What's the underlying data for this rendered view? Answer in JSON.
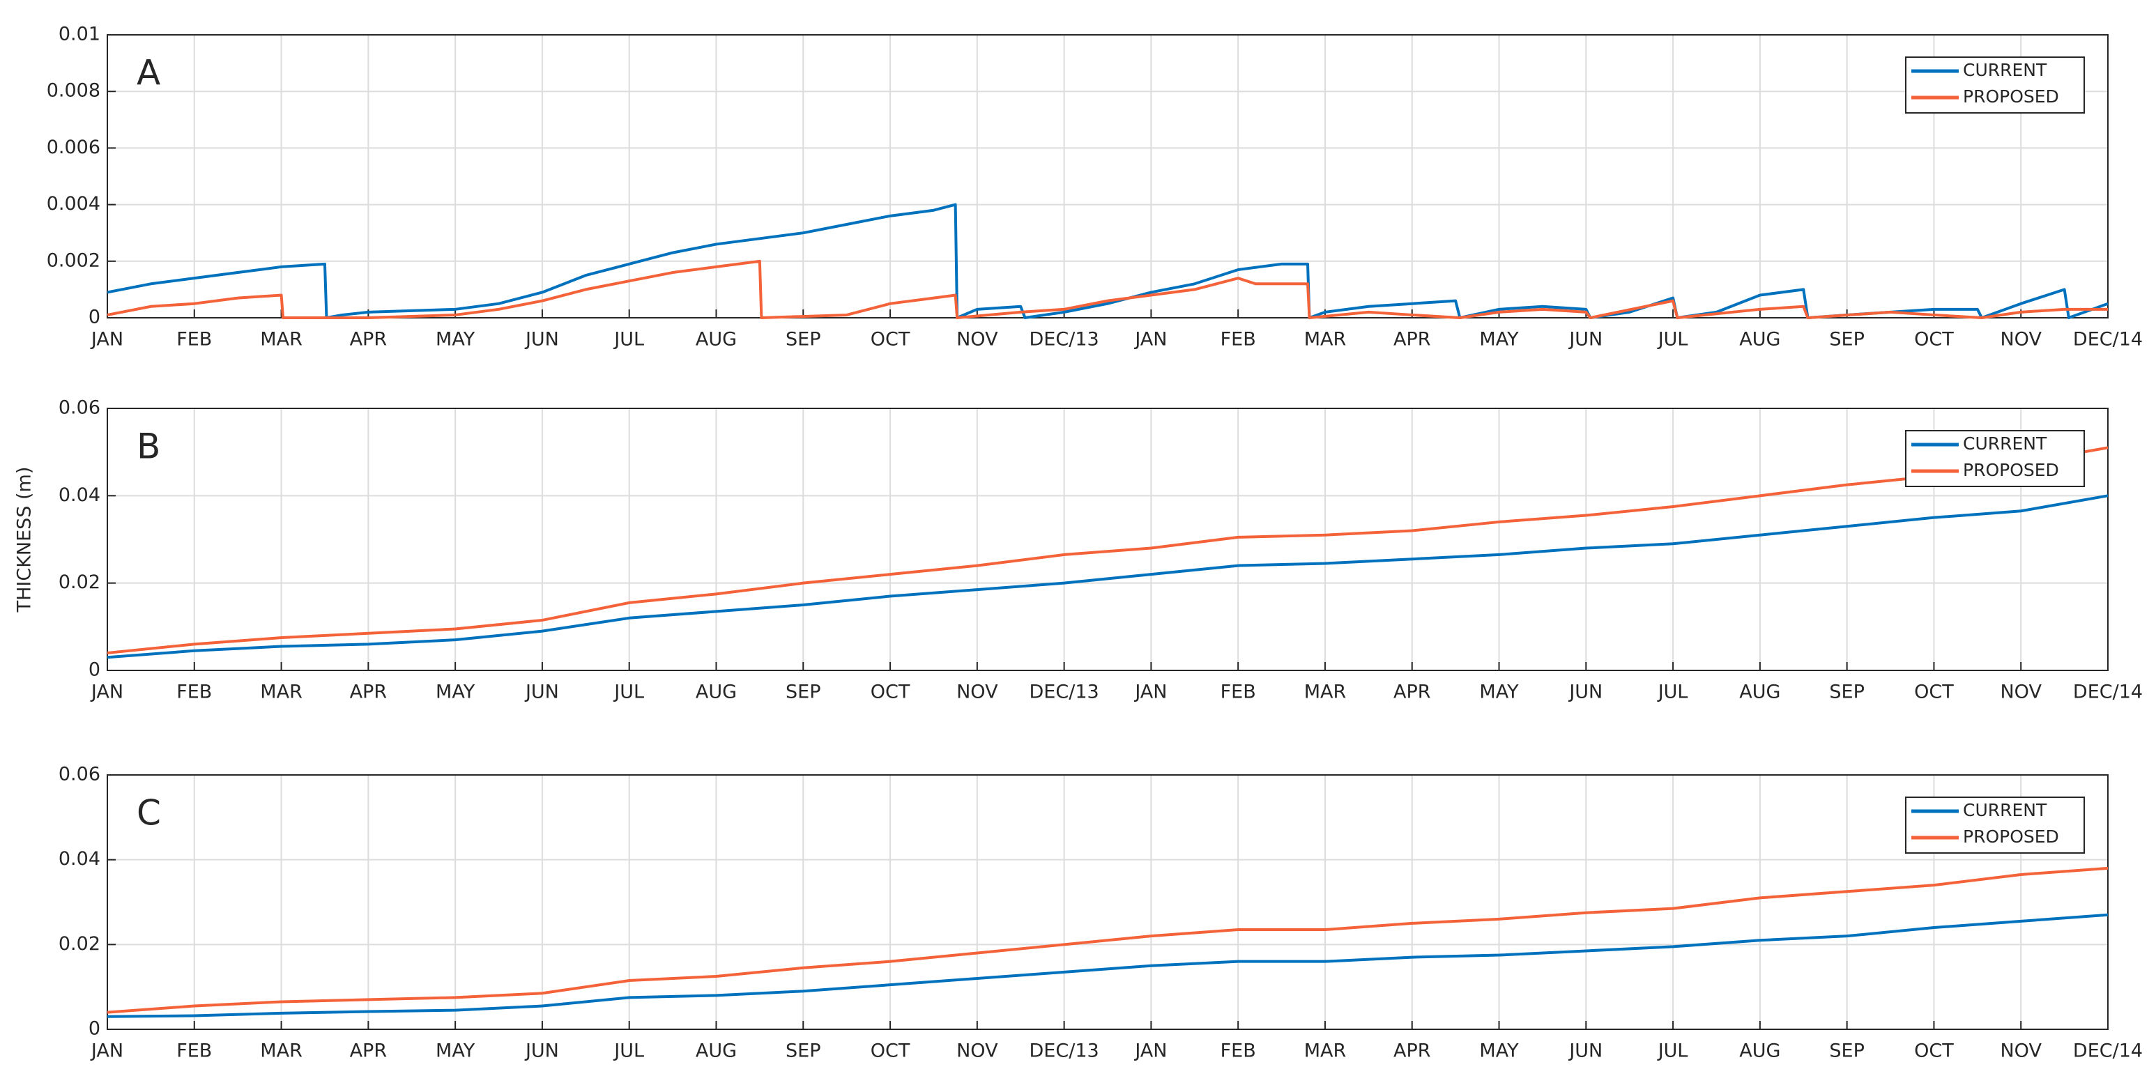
{
  "chart_data": [
    {
      "type": "line",
      "title": "A",
      "xlim": [
        0,
        23
      ],
      "ylim": [
        0,
        0.01
      ],
      "yticks": [
        0,
        0.002,
        0.004,
        0.006,
        0.008,
        0.01
      ],
      "xticks": [
        {
          "value": 0,
          "label": "JAN"
        },
        {
          "value": 1,
          "label": "FEB"
        },
        {
          "value": 2,
          "label": "MAR"
        },
        {
          "value": 3,
          "label": "APR"
        },
        {
          "value": 4,
          "label": "MAY"
        },
        {
          "value": 5,
          "label": "JUN"
        },
        {
          "value": 6,
          "label": "JUL"
        },
        {
          "value": 7,
          "label": "AUG"
        },
        {
          "value": 8,
          "label": "SEP"
        },
        {
          "value": 9,
          "label": "OCT"
        },
        {
          "value": 10,
          "label": "NOV"
        },
        {
          "value": 11,
          "label": "DEC/13"
        },
        {
          "value": 12,
          "label": "JAN"
        },
        {
          "value": 13,
          "label": "FEB"
        },
        {
          "value": 14,
          "label": "MAR"
        },
        {
          "value": 15,
          "label": "APR"
        },
        {
          "value": 16,
          "label": "MAY"
        },
        {
          "value": 17,
          "label": "JUN"
        },
        {
          "value": 18,
          "label": "JUL"
        },
        {
          "value": 19,
          "label": "AUG"
        },
        {
          "value": 20,
          "label": "SEP"
        },
        {
          "value": 21,
          "label": "OCT"
        },
        {
          "value": 22,
          "label": "NOV"
        },
        {
          "value": 23,
          "label": "DEC/14"
        }
      ],
      "grid": true,
      "legend": "northeast",
      "series": [
        {
          "name": "CURRENT",
          "color": "#0072bd",
          "x": [
            0,
            0.5,
            1,
            1.5,
            2,
            2.5,
            2.52,
            2.7,
            3,
            4,
            4.5,
            5,
            5.5,
            6,
            6.5,
            7,
            7.5,
            8,
            8.5,
            9,
            9.5,
            9.75,
            9.77,
            10,
            10.5,
            10.55,
            11,
            11.5,
            12,
            12.5,
            13,
            13.5,
            13.8,
            13.82,
            14,
            14.5,
            15,
            15.5,
            15.55,
            16,
            16.5,
            17,
            17.05,
            17.5,
            18,
            18.05,
            18.5,
            19,
            19.5,
            19.55,
            20,
            20.5,
            21,
            21.5,
            21.55,
            22,
            22.5,
            22.55,
            23
          ],
          "values": [
            0.0009,
            0.0012,
            0.0014,
            0.0016,
            0.0018,
            0.0019,
            0,
            0.0001,
            0.0002,
            0.0003,
            0.0005,
            0.0009,
            0.0015,
            0.0019,
            0.0023,
            0.0026,
            0.0028,
            0.003,
            0.0033,
            0.0036,
            0.0038,
            0.004,
            0,
            0.0003,
            0.0004,
            0,
            0.0002,
            0.0005,
            0.0009,
            0.0012,
            0.0017,
            0.0019,
            0.0019,
            0,
            0.0002,
            0.0004,
            0.0005,
            0.0006,
            0,
            0.0003,
            0.0004,
            0.0003,
            0,
            0.0002,
            0.0007,
            0,
            0.0002,
            0.0008,
            0.001,
            0,
            0.0001,
            0.0002,
            0.0003,
            0.0003,
            0,
            0.0005,
            0.001,
            0,
            0.0005
          ]
        },
        {
          "name": "PROPOSED",
          "color": "#f4623a",
          "x": [
            0,
            0.5,
            1,
            1.5,
            2,
            2.02,
            3,
            4,
            4.5,
            5,
            5.5,
            6,
            6.5,
            7,
            7.5,
            7.52,
            8.5,
            9,
            9.5,
            9.75,
            9.77,
            10.5,
            11,
            11.5,
            12,
            12.5,
            13,
            13.2,
            13.8,
            13.82,
            14.5,
            15,
            15.55,
            16,
            16.5,
            17,
            17.05,
            18,
            18.05,
            19,
            19.5,
            19.55,
            20.5,
            21,
            21.55,
            22,
            22.5,
            23
          ],
          "values": [
            0.0001,
            0.0004,
            0.0005,
            0.0007,
            0.0008,
            0,
            0,
            0.0001,
            0.0003,
            0.0006,
            0.001,
            0.0013,
            0.0016,
            0.0018,
            0.002,
            0,
            0.0001,
            0.0005,
            0.0007,
            0.0008,
            0,
            0.0002,
            0.0003,
            0.0006,
            0.0008,
            0.001,
            0.0014,
            0.0012,
            0.0012,
            0,
            0.0002,
            0.0001,
            0,
            0.0002,
            0.0003,
            0.0002,
            0,
            0.0006,
            0,
            0.0003,
            0.0004,
            0,
            0.0002,
            0.0001,
            0,
            0.0002,
            0.0003,
            0.0003
          ]
        }
      ]
    },
    {
      "type": "line",
      "title": "B",
      "ylabel": "THICKNESS (m)",
      "xlim": [
        0,
        23
      ],
      "ylim": [
        0,
        0.06
      ],
      "yticks": [
        0,
        0.02,
        0.04,
        0.06
      ],
      "xticks": [
        {
          "value": 0,
          "label": "JAN"
        },
        {
          "value": 1,
          "label": "FEB"
        },
        {
          "value": 2,
          "label": "MAR"
        },
        {
          "value": 3,
          "label": "APR"
        },
        {
          "value": 4,
          "label": "MAY"
        },
        {
          "value": 5,
          "label": "JUN"
        },
        {
          "value": 6,
          "label": "JUL"
        },
        {
          "value": 7,
          "label": "AUG"
        },
        {
          "value": 8,
          "label": "SEP"
        },
        {
          "value": 9,
          "label": "OCT"
        },
        {
          "value": 10,
          "label": "NOV"
        },
        {
          "value": 11,
          "label": "DEC/13"
        },
        {
          "value": 12,
          "label": "JAN"
        },
        {
          "value": 13,
          "label": "FEB"
        },
        {
          "value": 14,
          "label": "MAR"
        },
        {
          "value": 15,
          "label": "APR"
        },
        {
          "value": 16,
          "label": "MAY"
        },
        {
          "value": 17,
          "label": "JUN"
        },
        {
          "value": 18,
          "label": "JUL"
        },
        {
          "value": 19,
          "label": "AUG"
        },
        {
          "value": 20,
          "label": "SEP"
        },
        {
          "value": 21,
          "label": "OCT"
        },
        {
          "value": 22,
          "label": "NOV"
        },
        {
          "value": 23,
          "label": "DEC/14"
        }
      ],
      "grid": true,
      "legend": "northeast",
      "x": [
        0,
        1,
        2,
        3,
        4,
        5,
        6,
        7,
        8,
        9,
        10,
        11,
        12,
        13,
        14,
        15,
        16,
        17,
        18,
        19,
        20,
        21,
        22,
        23
      ],
      "series": [
        {
          "name": "CURRENT",
          "color": "#0072bd",
          "values": [
            0.003,
            0.0045,
            0.0055,
            0.006,
            0.007,
            0.009,
            0.012,
            0.0135,
            0.015,
            0.017,
            0.0185,
            0.02,
            0.022,
            0.024,
            0.0245,
            0.0255,
            0.0265,
            0.028,
            0.029,
            0.031,
            0.033,
            0.035,
            0.0365,
            0.04
          ]
        },
        {
          "name": "PROPOSED",
          "color": "#f4623a",
          "values": [
            0.004,
            0.006,
            0.0075,
            0.0085,
            0.0095,
            0.0115,
            0.0155,
            0.0175,
            0.02,
            0.022,
            0.024,
            0.0265,
            0.028,
            0.0305,
            0.031,
            0.032,
            0.034,
            0.0355,
            0.0375,
            0.04,
            0.0425,
            0.0445,
            0.0475,
            0.051
          ]
        }
      ]
    },
    {
      "type": "line",
      "title": "C",
      "xlim": [
        0,
        23
      ],
      "ylim": [
        0,
        0.06
      ],
      "yticks": [
        0,
        0.02,
        0.04,
        0.06
      ],
      "xticks": [
        {
          "value": 0,
          "label": "JAN"
        },
        {
          "value": 1,
          "label": "FEB"
        },
        {
          "value": 2,
          "label": "MAR"
        },
        {
          "value": 3,
          "label": "APR"
        },
        {
          "value": 4,
          "label": "MAY"
        },
        {
          "value": 5,
          "label": "JUN"
        },
        {
          "value": 6,
          "label": "JUL"
        },
        {
          "value": 7,
          "label": "AUG"
        },
        {
          "value": 8,
          "label": "SEP"
        },
        {
          "value": 9,
          "label": "OCT"
        },
        {
          "value": 10,
          "label": "NOV"
        },
        {
          "value": 11,
          "label": "DEC/13"
        },
        {
          "value": 12,
          "label": "JAN"
        },
        {
          "value": 13,
          "label": "FEB"
        },
        {
          "value": 14,
          "label": "MAR"
        },
        {
          "value": 15,
          "label": "APR"
        },
        {
          "value": 16,
          "label": "MAY"
        },
        {
          "value": 17,
          "label": "JUN"
        },
        {
          "value": 18,
          "label": "JUL"
        },
        {
          "value": 19,
          "label": "AUG"
        },
        {
          "value": 20,
          "label": "SEP"
        },
        {
          "value": 21,
          "label": "OCT"
        },
        {
          "value": 22,
          "label": "NOV"
        },
        {
          "value": 23,
          "label": "DEC/14"
        }
      ],
      "grid": true,
      "legend": "northeast",
      "x": [
        0,
        1,
        2,
        3,
        4,
        5,
        6,
        7,
        8,
        9,
        10,
        11,
        12,
        13,
        14,
        15,
        16,
        17,
        18,
        19,
        20,
        21,
        22,
        23
      ],
      "series": [
        {
          "name": "CURRENT",
          "color": "#0072bd",
          "values": [
            0.003,
            0.0032,
            0.0038,
            0.0042,
            0.0045,
            0.0055,
            0.0075,
            0.008,
            0.009,
            0.0105,
            0.012,
            0.0135,
            0.015,
            0.016,
            0.016,
            0.017,
            0.0175,
            0.0185,
            0.0195,
            0.021,
            0.022,
            0.024,
            0.0255,
            0.027
          ]
        },
        {
          "name": "PROPOSED",
          "color": "#f4623a",
          "values": [
            0.004,
            0.0055,
            0.0065,
            0.007,
            0.0075,
            0.0085,
            0.0115,
            0.0125,
            0.0145,
            0.016,
            0.018,
            0.02,
            0.022,
            0.0235,
            0.0235,
            0.025,
            0.026,
            0.0275,
            0.0285,
            0.031,
            0.0325,
            0.034,
            0.0365,
            0.038
          ]
        }
      ]
    }
  ]
}
